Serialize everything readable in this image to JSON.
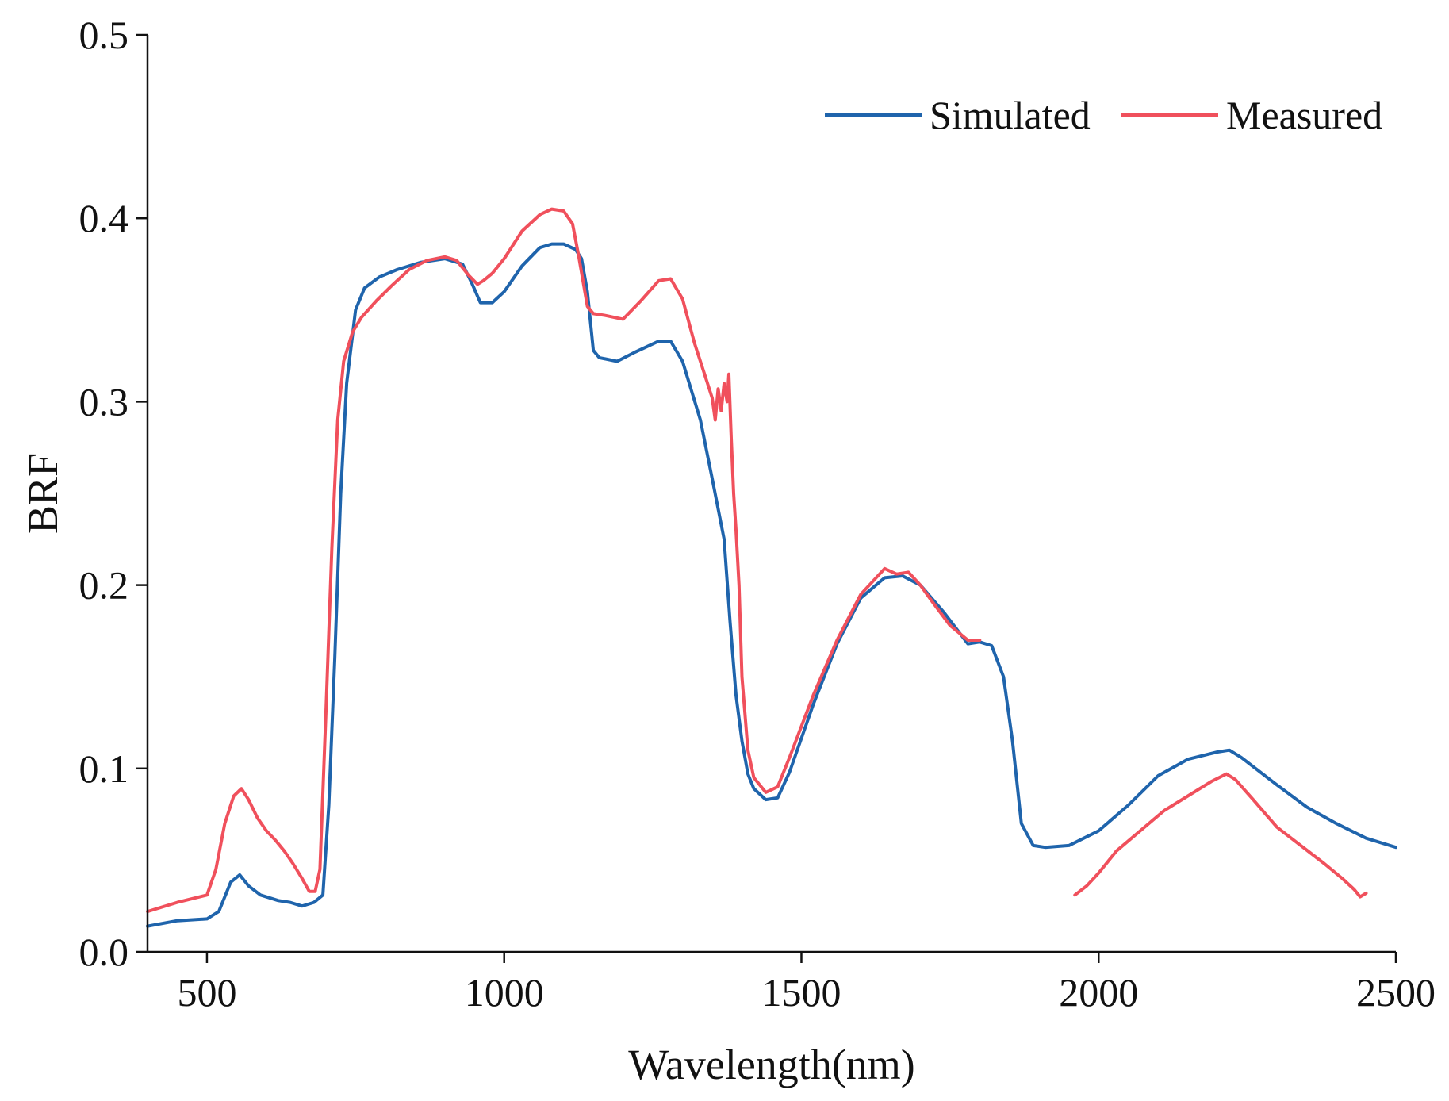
{
  "chart_data": {
    "type": "line",
    "xlabel": "Wavelength(nm)",
    "ylabel": "BRF",
    "xlim": [
      400,
      2500
    ],
    "ylim": [
      0.0,
      0.5
    ],
    "xticks": [
      500,
      1000,
      1500,
      2000,
      2500
    ],
    "yticks": [
      0.0,
      0.1,
      0.2,
      0.3,
      0.4,
      0.5
    ],
    "xtick_labels": [
      "500",
      "1000",
      "1500",
      "2000",
      "2500"
    ],
    "ytick_labels": [
      "0.0",
      "0.1",
      "0.2",
      "0.3",
      "0.4",
      "0.5"
    ],
    "grid": false,
    "legend_position": "top-right",
    "series": [
      {
        "name": "Simulated",
        "color": "#1f64ac",
        "x": [
          400,
          450,
          500,
          520,
          540,
          555,
          570,
          590,
          620,
          640,
          660,
          680,
          695,
          705,
          715,
          725,
          735,
          750,
          765,
          790,
          820,
          860,
          900,
          930,
          945,
          960,
          980,
          1000,
          1030,
          1060,
          1080,
          1100,
          1120,
          1130,
          1140,
          1150,
          1160,
          1190,
          1220,
          1260,
          1280,
          1300,
          1330,
          1350,
          1370,
          1380,
          1390,
          1400,
          1410,
          1420,
          1440,
          1460,
          1480,
          1520,
          1560,
          1600,
          1640,
          1670,
          1700,
          1740,
          1780,
          1800,
          1820,
          1840,
          1855,
          1870,
          1890,
          1910,
          1950,
          2000,
          2050,
          2100,
          2150,
          2200,
          2220,
          2240,
          2300,
          2350,
          2400,
          2450,
          2500
        ],
        "y": [
          0.014,
          0.017,
          0.018,
          0.022,
          0.038,
          0.042,
          0.036,
          0.031,
          0.028,
          0.027,
          0.025,
          0.027,
          0.031,
          0.08,
          0.16,
          0.25,
          0.31,
          0.35,
          0.362,
          0.368,
          0.372,
          0.376,
          0.378,
          0.375,
          0.365,
          0.354,
          0.354,
          0.36,
          0.374,
          0.384,
          0.386,
          0.386,
          0.383,
          0.378,
          0.36,
          0.328,
          0.324,
          0.322,
          0.327,
          0.333,
          0.333,
          0.322,
          0.29,
          0.258,
          0.225,
          0.18,
          0.14,
          0.115,
          0.097,
          0.089,
          0.083,
          0.084,
          0.098,
          0.135,
          0.168,
          0.193,
          0.204,
          0.205,
          0.2,
          0.185,
          0.168,
          0.169,
          0.167,
          0.15,
          0.115,
          0.07,
          0.058,
          0.057,
          0.058,
          0.066,
          0.08,
          0.096,
          0.105,
          0.109,
          0.11,
          0.106,
          0.091,
          0.079,
          0.07,
          0.062,
          0.057
        ]
      },
      {
        "name": "Measured",
        "color": "#f0505c",
        "x": [
          400,
          450,
          500,
          515,
          530,
          545,
          558,
          570,
          585,
          600,
          615,
          630,
          645,
          660,
          672,
          682,
          690,
          700,
          710,
          720,
          730,
          745,
          760,
          785,
          810,
          840,
          870,
          900,
          920,
          940,
          955,
          965,
          980,
          1000,
          1030,
          1060,
          1080,
          1100,
          1115,
          1125,
          1140,
          1150,
          1170,
          1200,
          1230,
          1260,
          1280,
          1300,
          1320,
          1340,
          1350,
          1355,
          1360,
          1365,
          1370,
          1375,
          1378,
          1382,
          1386,
          1390,
          1395,
          1400,
          1410,
          1420,
          1440,
          1460,
          1480,
          1520,
          1560,
          1600,
          1640,
          1660,
          1680,
          1700,
          1720,
          1750,
          1780,
          1800,
          1960,
          1980,
          2000,
          2030,
          2070,
          2110,
          2150,
          2190,
          2215,
          2230,
          2260,
          2300,
          2340,
          2380,
          2410,
          2430,
          2440,
          2450
        ],
        "y": [
          0.022,
          0.027,
          0.031,
          0.045,
          0.07,
          0.085,
          0.089,
          0.083,
          0.073,
          0.066,
          0.061,
          0.055,
          0.048,
          0.04,
          0.033,
          0.033,
          0.045,
          0.13,
          0.22,
          0.29,
          0.322,
          0.338,
          0.346,
          0.355,
          0.363,
          0.372,
          0.377,
          0.379,
          0.377,
          0.369,
          0.364,
          0.366,
          0.37,
          0.378,
          0.393,
          0.402,
          0.405,
          0.404,
          0.397,
          0.38,
          0.352,
          0.348,
          0.347,
          0.345,
          0.355,
          0.366,
          0.367,
          0.356,
          0.332,
          0.312,
          0.302,
          0.29,
          0.307,
          0.295,
          0.31,
          0.3,
          0.315,
          0.28,
          0.25,
          0.23,
          0.2,
          0.15,
          0.11,
          0.095,
          0.087,
          0.09,
          0.106,
          0.14,
          0.17,
          0.195,
          0.209,
          0.206,
          0.207,
          0.2,
          0.191,
          0.178,
          0.17,
          0.17,
          0.031,
          0.036,
          0.043,
          0.055,
          0.066,
          0.077,
          0.085,
          0.093,
          0.097,
          0.094,
          0.083,
          0.068,
          0.058,
          0.048,
          0.04,
          0.034,
          0.03,
          0.032
        ]
      }
    ]
  }
}
